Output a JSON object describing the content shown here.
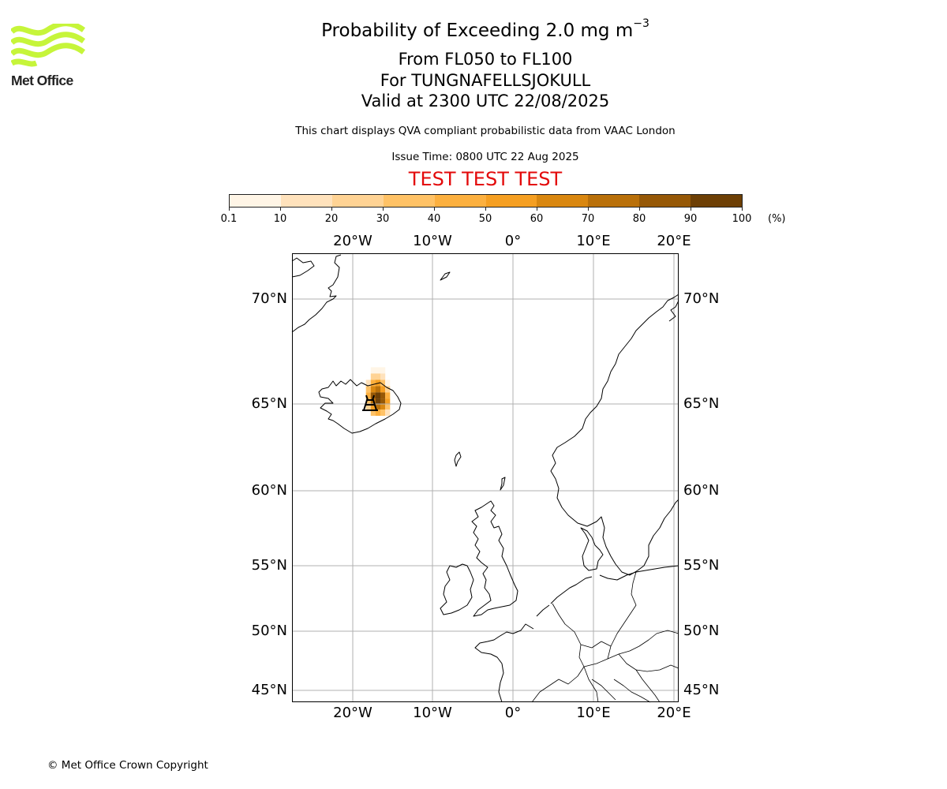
{
  "logo": {
    "text": "Met Office",
    "icon": "met-office-wave-logo",
    "color": "#c6f53a"
  },
  "title": {
    "line1_prefix": "Probability of Exceeding 2.0 mg m",
    "line1_superscript": "−3",
    "line2": "From FL050 to FL100",
    "line3": "For TUNGNAFELLSJOKULL",
    "line4": "Valid at 2300 UTC 22/08/2025"
  },
  "subtitle": "This chart displays QVA compliant probabilistic data from VAAC London",
  "issue_time": "Issue Time: 0800 UTC 22 Aug 2025",
  "test_banner": "TEST TEST TEST",
  "colorbar": {
    "unit": "(%)",
    "tick_labels": [
      "0.1",
      "10",
      "20",
      "30",
      "40",
      "50",
      "60",
      "70",
      "80",
      "90",
      "100"
    ],
    "colors": [
      "#fff5e6",
      "#ffe2bc",
      "#ffd394",
      "#ffc266",
      "#fcb03f",
      "#f59f22",
      "#d98710",
      "#b9700a",
      "#965806",
      "#6d3f05"
    ]
  },
  "map": {
    "longitude_labels": [
      "20°W",
      "10°W",
      "0°",
      "10°E",
      "20°E"
    ],
    "latitude_labels": [
      "70°N",
      "65°N",
      "60°N",
      "55°N",
      "50°N",
      "45°N"
    ],
    "gridline_color": "#b0b0b0",
    "volcano_icon": "volcano-marker-icon",
    "volcano_name": "TUNGNAFELLSJOKULL",
    "ash_plume": {
      "note_units": "probability percent per grid cell (lon, lat in degrees)",
      "cells": [
        {
          "lon": -17.4,
          "lat": 66.6,
          "p": 5
        },
        {
          "lon": -16.8,
          "lat": 66.6,
          "p": 5
        },
        {
          "lon": -16.2,
          "lat": 66.6,
          "p": 5
        },
        {
          "lon": -17.4,
          "lat": 66.3,
          "p": 25
        },
        {
          "lon": -16.8,
          "lat": 66.3,
          "p": 25
        },
        {
          "lon": -16.2,
          "lat": 66.3,
          "p": 15
        },
        {
          "lon": -18.0,
          "lat": 66.0,
          "p": 15
        },
        {
          "lon": -17.4,
          "lat": 66.0,
          "p": 45
        },
        {
          "lon": -16.8,
          "lat": 66.0,
          "p": 55
        },
        {
          "lon": -16.2,
          "lat": 66.0,
          "p": 35
        },
        {
          "lon": -15.6,
          "lat": 66.0,
          "p": 5
        },
        {
          "lon": -18.0,
          "lat": 65.7,
          "p": 35
        },
        {
          "lon": -17.4,
          "lat": 65.7,
          "p": 65
        },
        {
          "lon": -16.8,
          "lat": 65.7,
          "p": 75
        },
        {
          "lon": -16.2,
          "lat": 65.7,
          "p": 55
        },
        {
          "lon": -15.6,
          "lat": 65.7,
          "p": 25
        },
        {
          "lon": -18.0,
          "lat": 65.4,
          "p": 45
        },
        {
          "lon": -17.4,
          "lat": 65.4,
          "p": 85
        },
        {
          "lon": -16.8,
          "lat": 65.4,
          "p": 95
        },
        {
          "lon": -16.2,
          "lat": 65.4,
          "p": 85
        },
        {
          "lon": -15.6,
          "lat": 65.4,
          "p": 45
        },
        {
          "lon": -18.0,
          "lat": 65.1,
          "p": 35
        },
        {
          "lon": -17.4,
          "lat": 65.1,
          "p": 75
        },
        {
          "lon": -16.8,
          "lat": 65.1,
          "p": 95
        },
        {
          "lon": -16.2,
          "lat": 65.1,
          "p": 85
        },
        {
          "lon": -15.6,
          "lat": 65.1,
          "p": 55
        },
        {
          "lon": -18.0,
          "lat": 64.8,
          "p": 25
        },
        {
          "lon": -17.4,
          "lat": 64.8,
          "p": 55
        },
        {
          "lon": -16.8,
          "lat": 64.8,
          "p": 75
        },
        {
          "lon": -16.2,
          "lat": 64.8,
          "p": 65
        },
        {
          "lon": -15.6,
          "lat": 64.8,
          "p": 35
        },
        {
          "lon": -17.4,
          "lat": 64.5,
          "p": 35
        },
        {
          "lon": -16.8,
          "lat": 64.5,
          "p": 45
        },
        {
          "lon": -16.2,
          "lat": 64.5,
          "p": 35
        },
        {
          "lon": -15.6,
          "lat": 64.5,
          "p": 15
        }
      ]
    }
  },
  "copyright": "© Met Office Crown Copyright"
}
